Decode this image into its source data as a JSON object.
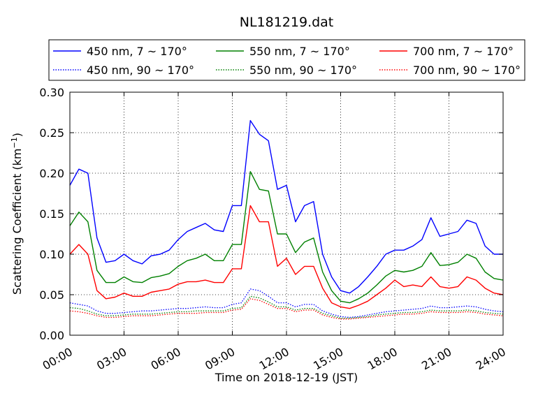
{
  "chart_data": {
    "type": "line",
    "title": "NL181219.dat",
    "xlabel": "Time on 2018-12-19 (JST)",
    "ylabel_main": "Scattering Coefficient (km",
    "ylabel_sup": "−1",
    "ylabel_close": ")",
    "xlim": [
      "00:00",
      "24:00"
    ],
    "ylim": [
      0.0,
      0.3
    ],
    "grid": true,
    "legend_position": "top, above plot (3 columns)",
    "x_ticks": [
      "00:00",
      "03:00",
      "06:00",
      "09:00",
      "12:00",
      "15:00",
      "18:00",
      "21:00",
      "24:00"
    ],
    "y_ticks": [
      "0.00",
      "0.05",
      "0.10",
      "0.15",
      "0.20",
      "0.25",
      "0.30"
    ],
    "x": [
      "00:00",
      "00:30",
      "01:00",
      "01:30",
      "02:00",
      "02:30",
      "03:00",
      "03:30",
      "04:00",
      "04:30",
      "05:00",
      "05:30",
      "06:00",
      "06:30",
      "07:00",
      "07:30",
      "08:00",
      "08:30",
      "09:00",
      "09:30",
      "10:00",
      "10:30",
      "11:00",
      "11:30",
      "12:00",
      "12:30",
      "13:00",
      "13:30",
      "14:00",
      "14:30",
      "15:00",
      "15:30",
      "16:00",
      "16:30",
      "17:00",
      "17:30",
      "18:00",
      "18:30",
      "19:00",
      "19:30",
      "20:00",
      "20:30",
      "21:00",
      "21:30",
      "22:00",
      "22:30",
      "23:00",
      "23:30",
      "24:00"
    ],
    "series": [
      {
        "name": "450 nm, 7 ~ 170°",
        "color": "#0000ff",
        "style": "solid",
        "values": [
          0.185,
          0.205,
          0.2,
          0.12,
          0.09,
          0.092,
          0.1,
          0.092,
          0.088,
          0.098,
          0.1,
          0.105,
          0.118,
          0.128,
          0.133,
          0.138,
          0.13,
          0.128,
          0.16,
          0.16,
          0.265,
          0.248,
          0.24,
          0.18,
          0.185,
          0.14,
          0.16,
          0.165,
          0.1,
          0.072,
          0.055,
          0.052,
          0.06,
          0.072,
          0.085,
          0.1,
          0.105,
          0.105,
          0.11,
          0.118,
          0.145,
          0.122,
          0.125,
          0.128,
          0.142,
          0.138,
          0.11,
          0.1,
          0.1
        ]
      },
      {
        "name": "450 nm, 90 ~ 170°",
        "color": "#0000ff",
        "style": "dotted",
        "values": [
          0.04,
          0.038,
          0.036,
          0.03,
          0.027,
          0.027,
          0.028,
          0.029,
          0.03,
          0.03,
          0.031,
          0.032,
          0.033,
          0.033,
          0.034,
          0.035,
          0.034,
          0.034,
          0.038,
          0.04,
          0.057,
          0.055,
          0.048,
          0.04,
          0.04,
          0.035,
          0.038,
          0.038,
          0.03,
          0.026,
          0.023,
          0.022,
          0.023,
          0.025,
          0.027,
          0.029,
          0.03,
          0.031,
          0.032,
          0.033,
          0.036,
          0.034,
          0.034,
          0.035,
          0.036,
          0.035,
          0.032,
          0.03,
          0.029
        ]
      },
      {
        "name": "550 nm, 7 ~ 170°",
        "color": "#008000",
        "style": "solid",
        "values": [
          0.135,
          0.152,
          0.14,
          0.08,
          0.065,
          0.065,
          0.072,
          0.066,
          0.065,
          0.071,
          0.073,
          0.076,
          0.085,
          0.092,
          0.095,
          0.1,
          0.092,
          0.092,
          0.112,
          0.112,
          0.202,
          0.18,
          0.178,
          0.125,
          0.125,
          0.102,
          0.115,
          0.12,
          0.078,
          0.055,
          0.042,
          0.04,
          0.045,
          0.052,
          0.062,
          0.073,
          0.08,
          0.078,
          0.08,
          0.085,
          0.102,
          0.086,
          0.087,
          0.09,
          0.1,
          0.095,
          0.078,
          0.07,
          0.068
        ]
      },
      {
        "name": "550 nm, 90 ~ 170°",
        "color": "#008000",
        "style": "dotted",
        "values": [
          0.034,
          0.033,
          0.03,
          0.026,
          0.024,
          0.024,
          0.025,
          0.026,
          0.026,
          0.026,
          0.027,
          0.028,
          0.029,
          0.029,
          0.03,
          0.03,
          0.03,
          0.03,
          0.033,
          0.034,
          0.048,
          0.046,
          0.041,
          0.035,
          0.035,
          0.031,
          0.033,
          0.033,
          0.027,
          0.024,
          0.021,
          0.021,
          0.022,
          0.023,
          0.025,
          0.026,
          0.027,
          0.028,
          0.028,
          0.029,
          0.031,
          0.03,
          0.03,
          0.03,
          0.031,
          0.03,
          0.028,
          0.027,
          0.026
        ]
      },
      {
        "name": "700 nm, 7 ~ 170°",
        "color": "#ff0000",
        "style": "solid",
        "values": [
          0.1,
          0.112,
          0.1,
          0.055,
          0.045,
          0.047,
          0.052,
          0.048,
          0.048,
          0.053,
          0.055,
          0.057,
          0.063,
          0.066,
          0.066,
          0.068,
          0.065,
          0.065,
          0.082,
          0.082,
          0.16,
          0.14,
          0.14,
          0.085,
          0.095,
          0.075,
          0.085,
          0.085,
          0.058,
          0.04,
          0.035,
          0.033,
          0.037,
          0.042,
          0.05,
          0.058,
          0.068,
          0.06,
          0.062,
          0.06,
          0.072,
          0.06,
          0.058,
          0.06,
          0.072,
          0.068,
          0.058,
          0.052,
          0.05
        ]
      },
      {
        "name": "700 nm, 90 ~ 170°",
        "color": "#ff0000",
        "style": "dotted",
        "values": [
          0.03,
          0.029,
          0.027,
          0.024,
          0.022,
          0.022,
          0.023,
          0.024,
          0.024,
          0.024,
          0.025,
          0.026,
          0.027,
          0.027,
          0.027,
          0.028,
          0.028,
          0.028,
          0.031,
          0.032,
          0.045,
          0.043,
          0.038,
          0.033,
          0.033,
          0.029,
          0.031,
          0.031,
          0.025,
          0.022,
          0.02,
          0.02,
          0.021,
          0.022,
          0.023,
          0.024,
          0.025,
          0.026,
          0.026,
          0.027,
          0.029,
          0.028,
          0.028,
          0.028,
          0.029,
          0.028,
          0.026,
          0.025,
          0.024
        ]
      }
    ]
  }
}
